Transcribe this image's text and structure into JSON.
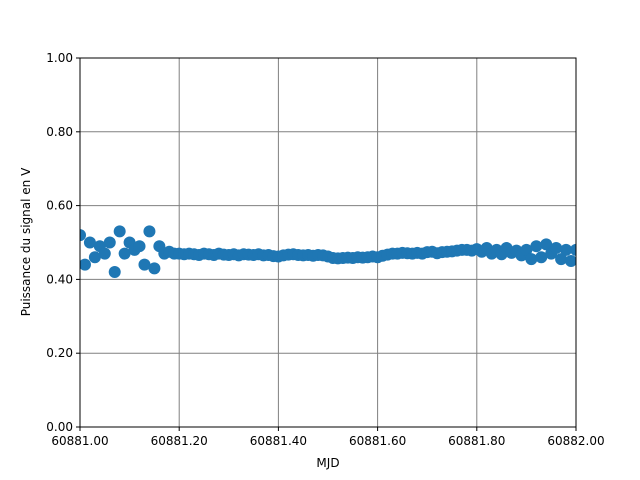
{
  "chart_data": {
    "type": "scatter",
    "xlabel": "MJD",
    "ylabel": "Puissance du signal en V",
    "xlim": [
      60881,
      60882
    ],
    "xticks": [
      {
        "value": 60881,
        "label": "60881.00"
      },
      {
        "value": 60881.2,
        "label": "60881.20"
      },
      {
        "value": 60881.4,
        "label": "60881.40"
      },
      {
        "value": 60881.6,
        "label": "60881.60"
      },
      {
        "value": 60881.8,
        "label": "60881.80"
      },
      {
        "value": 60882,
        "label": "60882.00"
      }
    ],
    "ylim": [
      0,
      1
    ],
    "yticks": [
      {
        "value": 0,
        "label": "0.00"
      },
      {
        "value": 0.2,
        "label": "0.20"
      },
      {
        "value": 0.4,
        "label": "0.40"
      },
      {
        "value": 0.6,
        "label": "0.60"
      },
      {
        "value": 0.8,
        "label": "0.80"
      },
      {
        "value": 1,
        "label": "1.00"
      }
    ],
    "grid": true,
    "color": "#1f77b4",
    "x": [
      60881,
      60881.01,
      60881.02,
      60881.03,
      60881.04,
      60881.05,
      60881.06,
      60881.07,
      60881.08,
      60881.09,
      60881.1,
      60881.11,
      60881.12,
      60881.13,
      60881.14,
      60881.15,
      60881.16,
      60881.17,
      60881.18,
      60881.19,
      60881.2,
      60881.21,
      60881.22,
      60881.23,
      60881.24,
      60881.25,
      60881.26,
      60881.27,
      60881.28,
      60881.29,
      60881.3,
      60881.31,
      60881.32,
      60881.33,
      60881.34,
      60881.35,
      60881.36,
      60881.37,
      60881.38,
      60881.39,
      60881.4,
      60881.41,
      60881.42,
      60881.43,
      60881.44,
      60881.45,
      60881.46,
      60881.47,
      60881.48,
      60881.49,
      60881.5,
      60881.51,
      60881.52,
      60881.53,
      60881.54,
      60881.55,
      60881.56,
      60881.57,
      60881.58,
      60881.59,
      60881.6,
      60881.61,
      60881.62,
      60881.63,
      60881.64,
      60881.65,
      60881.66,
      60881.67,
      60881.68,
      60881.69,
      60881.7,
      60881.71,
      60881.72,
      60881.73,
      60881.74,
      60881.75,
      60881.76,
      60881.77,
      60881.78,
      60881.79,
      60881.8,
      60881.81,
      60881.82,
      60881.83,
      60881.84,
      60881.85,
      60881.86,
      60881.87,
      60881.88,
      60881.89,
      60881.9,
      60881.91,
      60881.92,
      60881.93,
      60881.94,
      60881.95,
      60881.96,
      60881.97,
      60881.98,
      60881.99,
      60882
    ],
    "values": [
      0.52,
      0.44,
      0.5,
      0.46,
      0.49,
      0.47,
      0.5,
      0.42,
      0.53,
      0.47,
      0.5,
      0.48,
      0.49,
      0.44,
      0.53,
      0.43,
      0.49,
      0.47,
      0.475,
      0.47,
      0.47,
      0.468,
      0.47,
      0.468,
      0.466,
      0.47,
      0.468,
      0.466,
      0.47,
      0.467,
      0.466,
      0.468,
      0.465,
      0.468,
      0.467,
      0.466,
      0.468,
      0.465,
      0.466,
      0.463,
      0.462,
      0.465,
      0.467,
      0.468,
      0.466,
      0.465,
      0.466,
      0.464,
      0.466,
      0.465,
      0.462,
      0.458,
      0.457,
      0.458,
      0.459,
      0.458,
      0.46,
      0.459,
      0.46,
      0.462,
      0.46,
      0.464,
      0.467,
      0.47,
      0.47,
      0.472,
      0.471,
      0.47,
      0.472,
      0.47,
      0.474,
      0.475,
      0.471,
      0.474,
      0.475,
      0.476,
      0.478,
      0.48,
      0.48,
      0.478,
      0.482,
      0.475,
      0.485,
      0.47,
      0.48,
      0.468,
      0.485,
      0.472,
      0.478,
      0.465,
      0.48,
      0.455,
      0.49,
      0.46,
      0.495,
      0.47,
      0.485,
      0.455,
      0.48,
      0.45,
      0.48
    ]
  }
}
